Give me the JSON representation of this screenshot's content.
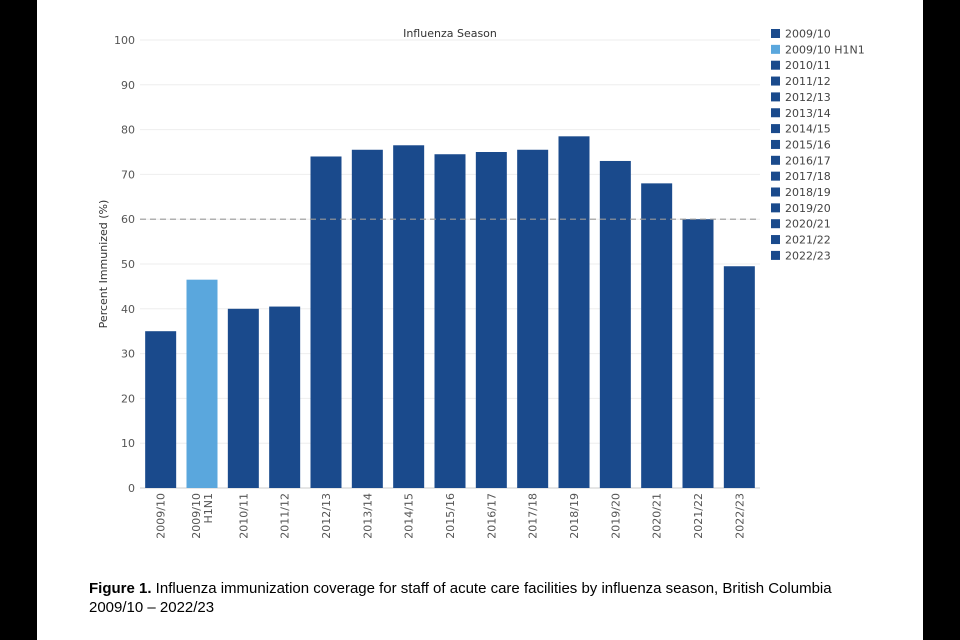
{
  "chart_data": {
    "type": "bar",
    "title": "Influenza Season",
    "xlabel": "",
    "ylabel": "Percent Immunized (%)",
    "ylim": [
      0,
      100
    ],
    "yticks": [
      0,
      10,
      20,
      30,
      40,
      50,
      60,
      70,
      80,
      90,
      100
    ],
    "categories": [
      "2009/10",
      "2009/10 H1N1",
      "2010/11",
      "2011/12",
      "2012/13",
      "2013/14",
      "2014/15",
      "2015/16",
      "2016/17",
      "2017/18",
      "2018/19",
      "2019/20",
      "2020/21",
      "2021/22",
      "2022/23"
    ],
    "tick_labels": [
      [
        "2009/10"
      ],
      [
        "2009/10",
        "H1N1"
      ],
      [
        "2010/11"
      ],
      [
        "2011/12"
      ],
      [
        "2012/13"
      ],
      [
        "2013/14"
      ],
      [
        "2014/15"
      ],
      [
        "2015/16"
      ],
      [
        "2016/17"
      ],
      [
        "2017/18"
      ],
      [
        "2018/19"
      ],
      [
        "2019/20"
      ],
      [
        "2020/21"
      ],
      [
        "2021/22"
      ],
      [
        "2022/23"
      ]
    ],
    "values": [
      35,
      46.5,
      40,
      40.5,
      74,
      75.5,
      76.5,
      74.5,
      75,
      75.5,
      78.5,
      73,
      68,
      60,
      49.5
    ],
    "colors": [
      "#1a4a8c",
      "#5aa7dd",
      "#1a4a8c",
      "#1a4a8c",
      "#1a4a8c",
      "#1a4a8c",
      "#1a4a8c",
      "#1a4a8c",
      "#1a4a8c",
      "#1a4a8c",
      "#1a4a8c",
      "#1a4a8c",
      "#1a4a8c",
      "#1a4a8c",
      "#1a4a8c"
    ],
    "reference_line": {
      "value": 60,
      "style": "dashed",
      "color": "#999999"
    },
    "legend": {
      "placement": "right",
      "items": [
        {
          "label": "2009/10",
          "color": "#1a4a8c"
        },
        {
          "label": "2009/10 H1N1",
          "color": "#5aa7dd"
        },
        {
          "label": "2010/11",
          "color": "#1a4a8c"
        },
        {
          "label": "2011/12",
          "color": "#1a4a8c"
        },
        {
          "label": "2012/13",
          "color": "#1a4a8c"
        },
        {
          "label": "2013/14",
          "color": "#1a4a8c"
        },
        {
          "label": "2014/15",
          "color": "#1a4a8c"
        },
        {
          "label": "2015/16",
          "color": "#1a4a8c"
        },
        {
          "label": "2016/17",
          "color": "#1a4a8c"
        },
        {
          "label": "2017/18",
          "color": "#1a4a8c"
        },
        {
          "label": "2018/19",
          "color": "#1a4a8c"
        },
        {
          "label": "2019/20",
          "color": "#1a4a8c"
        },
        {
          "label": "2020/21",
          "color": "#1a4a8c"
        },
        {
          "label": "2021/22",
          "color": "#1a4a8c"
        },
        {
          "label": "2022/23",
          "color": "#1a4a8c"
        }
      ]
    },
    "grid": true
  },
  "caption": {
    "label": "Figure 1.",
    "text": " Influenza immunization coverage for staff of acute care facilities by influenza season, British Columbia 2009/10 – 2022/23"
  }
}
